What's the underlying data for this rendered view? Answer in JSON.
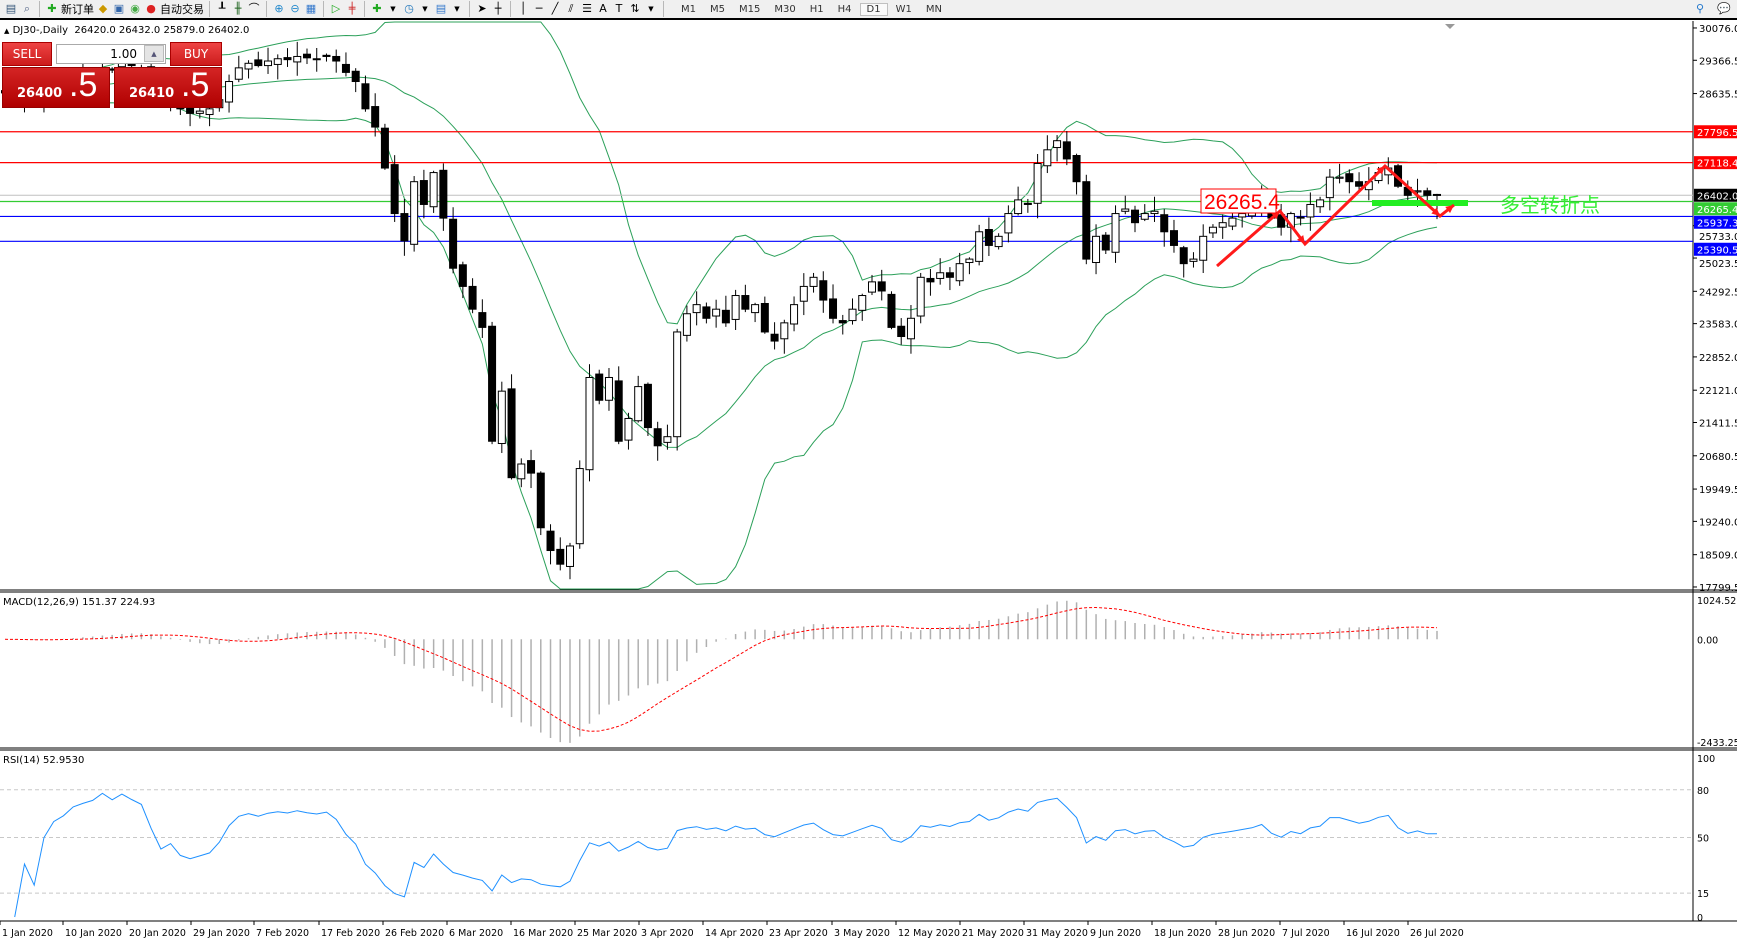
{
  "toolbar": {
    "new_order_label": "新订单",
    "auto_trading_label": "自动交易",
    "timeframes": [
      "M1",
      "M5",
      "M15",
      "M30",
      "H1",
      "H4",
      "D1",
      "W1",
      "MN"
    ],
    "active_timeframe": "D1"
  },
  "chart_header": {
    "symbol_line": "DJ30-,Daily  26420.0 26432.0 25879.0 26402.0"
  },
  "trade_widget": {
    "sell_label": "SELL",
    "buy_label": "BUY",
    "lot": "1.00",
    "sell_price_main": "26400",
    "sell_price_big": ".5",
    "buy_price_main": "26410",
    "buy_price_big": ".5"
  },
  "colors": {
    "bands": "#2ca05a",
    "resistance": "#ff0000",
    "support": "#0000ff",
    "pivot": "#33dd33",
    "annotation": "#ff1a1a",
    "macd_signal": "#ff0000",
    "rsi": "#1e90ff"
  },
  "annotations": {
    "pivot_label": "26265.4",
    "pivot_text": "多空转折点"
  },
  "chart_data": {
    "type": "candlestick",
    "symbol": "DJ30-",
    "timeframe": "Daily",
    "ylim": [
      17755,
      30207
    ],
    "price_ticks": [
      "30076.0",
      "29366.5",
      "28635.5",
      "25733.0",
      "25023.5",
      "24292.5",
      "23583.0",
      "22852.0",
      "22121.0",
      "21411.5",
      "20680.5",
      "19949.5",
      "19240.0",
      "18509.0",
      "17799.5"
    ],
    "date_ticks": [
      "1 Jan 2020",
      "10 Jan 2020",
      "20 Jan 2020",
      "29 Jan 2020",
      "7 Feb 2020",
      "17 Feb 2020",
      "26 Feb 2020",
      "6 Mar 2020",
      "16 Mar 2020",
      "25 Mar 2020",
      "3 Apr 2020",
      "14 Apr 2020",
      "23 Apr 2020",
      "3 May 2020",
      "12 May 2020",
      "21 May 2020",
      "31 May 2020",
      "9 Jun 2020",
      "18 Jun 2020",
      "28 Jun 2020",
      "7 Jul 2020",
      "16 Jul 2020",
      "26 Jul 2020"
    ],
    "closes": [
      28700,
      28600,
      28650,
      28550,
      28700,
      28800,
      28850,
      28950,
      29000,
      29050,
      29200,
      29150,
      29300,
      29250,
      29200,
      28900,
      28500,
      28600,
      28300,
      28200,
      28250,
      28300,
      28500,
      28900,
      29200,
      29300,
      29250,
      29350,
      29400,
      29380,
      29450,
      29420,
      29400,
      29450,
      29350,
      29100,
      28900,
      28300,
      27900,
      27000,
      26000,
      25400,
      26700,
      26200,
      26900,
      25900,
      24800,
      24400,
      23900,
      23500,
      21000,
      22100,
      20200,
      20500,
      20300,
      19100,
      18600,
      18300,
      18700,
      20400,
      22400,
      21900,
      22400,
      21000,
      21500,
      22200,
      21300,
      20900,
      21100,
      23400,
      23800,
      24000,
      23700,
      23900,
      23600,
      24200,
      23900,
      24000,
      23400,
      23200,
      23600,
      24000,
      24400,
      24600,
      24100,
      23700,
      23600,
      23900,
      24200,
      24500,
      24300,
      23500,
      23300,
      23700,
      24600,
      24500,
      24700,
      24600,
      24900,
      25000,
      25600,
      25300,
      25500,
      26000,
      26300,
      26200,
      27100,
      27400,
      27600,
      27200,
      26700,
      25000,
      25500,
      25200,
      26000,
      26100,
      25800,
      26000,
      26050,
      25600,
      25300,
      24900,
      25000,
      25500,
      25700,
      25800,
      25900,
      26000,
      26100,
      26300,
      25900,
      25700,
      26000,
      25900,
      26200,
      26300,
      26800,
      26800,
      26700,
      26600,
      26700,
      26900,
      27000,
      26600,
      26400,
      26500,
      26400,
      26402
    ],
    "last_bar": {
      "open": 26420.0,
      "high": 26432.0,
      "low": 25879.0,
      "close": 26402.0
    },
    "horizontal_lines": [
      {
        "price": 27796.5,
        "label": "27796.5",
        "color": "#ff0000"
      },
      {
        "price": 27118.4,
        "label": "27118.4",
        "color": "#ff0000"
      },
      {
        "price": 26265.4,
        "label": "26265.4",
        "color": "#33cc33"
      },
      {
        "price": 25937.3,
        "label": "25937.3",
        "color": "#0000ff"
      },
      {
        "price": 25390.5,
        "label": "25390.5",
        "color": "#0000ff"
      }
    ],
    "current_price": {
      "price": 26402.0,
      "label": "26402.0"
    },
    "bollinger": {
      "period": 20,
      "deviation": 2
    },
    "macd": {
      "label": "MACD(12,26,9) 151.37 224.93",
      "fast": 12,
      "slow": 26,
      "signal": 9,
      "ylim": [
        -2433.25,
        1024.52
      ],
      "ticks": [
        "1024.52",
        "0.00",
        "-2433.25"
      ]
    },
    "rsi": {
      "label": "RSI(14) 52.9530",
      "period": 14,
      "levels": [
        80,
        50,
        15
      ],
      "ticks": [
        "100",
        "80",
        "50",
        "15",
        "0"
      ]
    }
  }
}
